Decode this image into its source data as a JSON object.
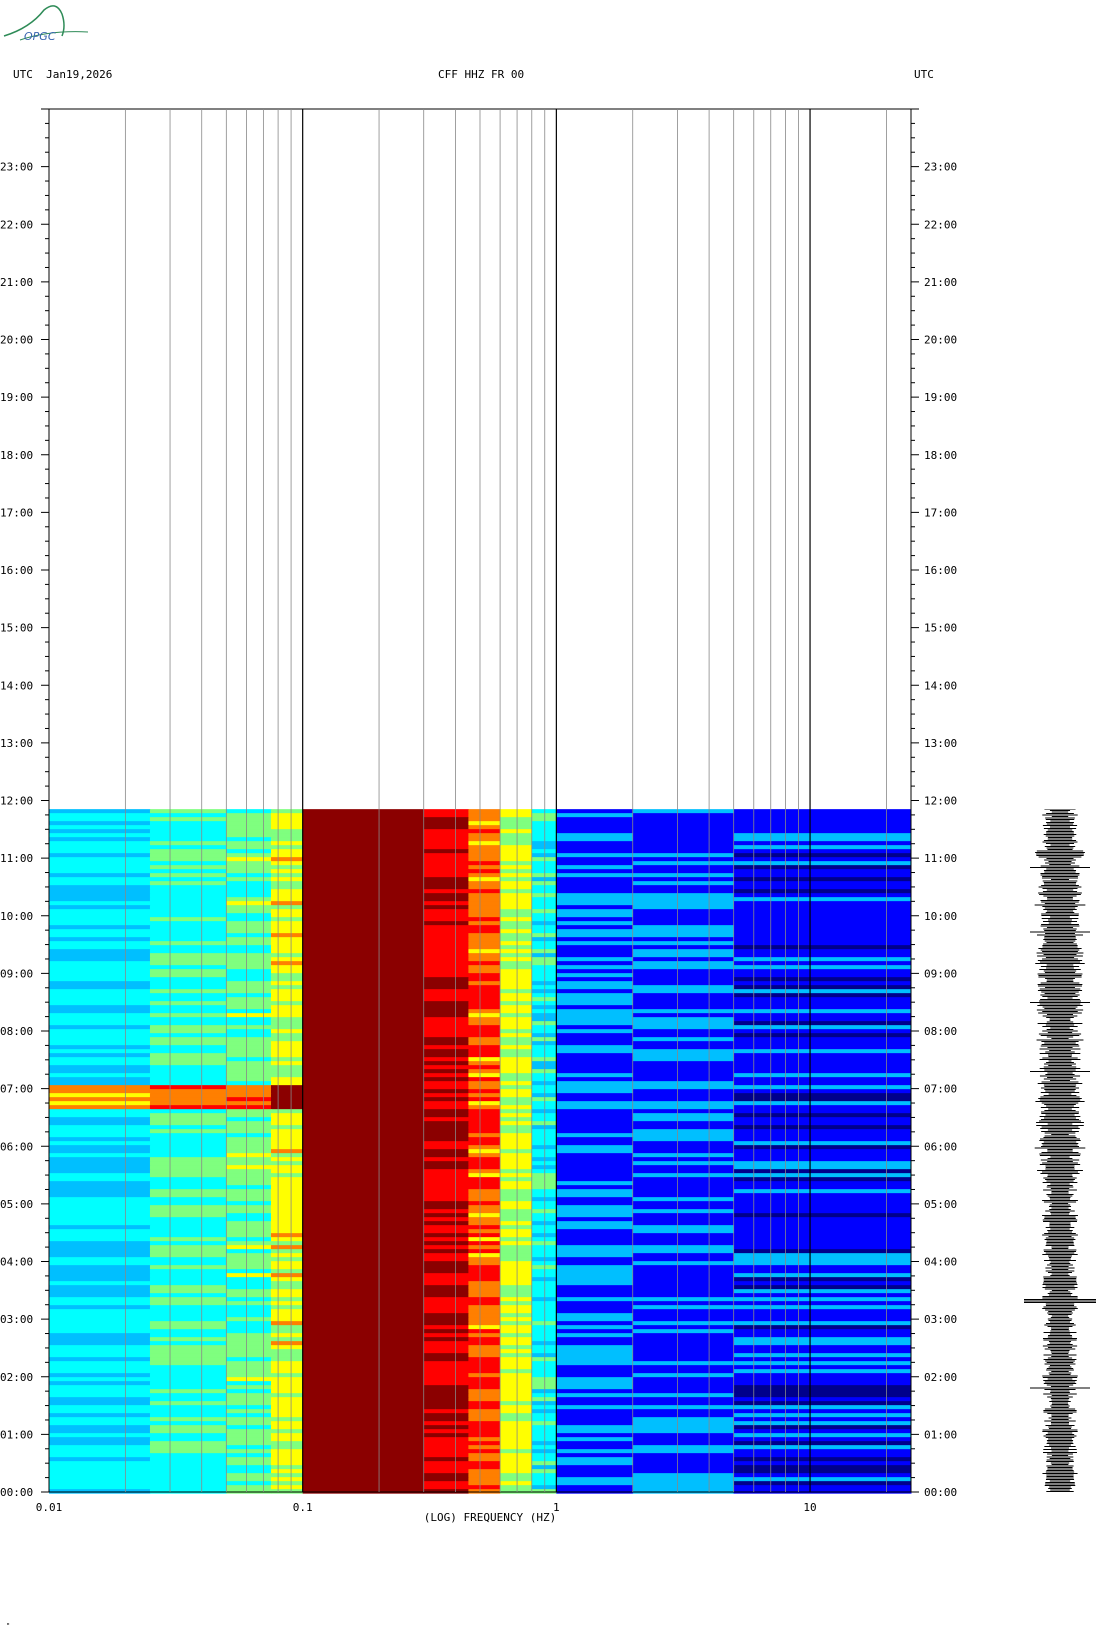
{
  "header": {
    "left": "UTC  Jan19,2026",
    "center": "CFF HHZ FR 00",
    "right": "UTC"
  },
  "logo": {
    "text": "OPGC"
  },
  "footnote": "\"",
  "chart_data": {
    "type": "heatmap",
    "title": "CFF HHZ FR 00",
    "date": "Jan19,2026",
    "xlabel": "(LOG) FREQUENCY (HZ)",
    "ylabel": "UTC",
    "x_scale": "log",
    "xlim": [
      0.01,
      25
    ],
    "x_major_ticks": [
      0.01,
      0.1,
      1,
      10
    ],
    "x_tick_labels": [
      "0.01",
      "0.1",
      "1",
      "10"
    ],
    "y_tick_labels": [
      "00:00",
      "01:00",
      "02:00",
      "03:00",
      "04:00",
      "05:00",
      "06:00",
      "07:00",
      "08:00",
      "09:00",
      "10:00",
      "11:00",
      "12:00",
      "13:00",
      "14:00",
      "15:00",
      "16:00",
      "17:00",
      "18:00",
      "19:00",
      "20:00",
      "21:00",
      "22:00",
      "23:00"
    ],
    "ylim_hours": [
      0,
      24
    ],
    "data_end_hour": 11.85,
    "colormap": [
      "#00008b",
      "#0000ff",
      "#00bfff",
      "#00ffff",
      "#7fff7f",
      "#ffff00",
      "#ff7f00",
      "#ff0000",
      "#8b0000"
    ],
    "bands": [
      {
        "from": 0.01,
        "to": 0.025,
        "level": 2.6
      },
      {
        "from": 0.025,
        "to": 0.05,
        "level": 3.4
      },
      {
        "from": 0.05,
        "to": 0.075,
        "level": 3.8
      },
      {
        "from": 0.075,
        "to": 0.1,
        "level": 4.8
      },
      {
        "from": 0.1,
        "to": 0.3,
        "level": 8.6
      },
      {
        "from": 0.3,
        "to": 0.45,
        "level": 7.4
      },
      {
        "from": 0.45,
        "to": 0.6,
        "level": 6.2
      },
      {
        "from": 0.6,
        "to": 0.8,
        "level": 4.6
      },
      {
        "from": 0.8,
        "to": 1.0,
        "level": 3.0
      },
      {
        "from": 1.0,
        "to": 2.0,
        "level": 1.4
      },
      {
        "from": 2.0,
        "to": 5.0,
        "level": 1.3
      },
      {
        "from": 5.0,
        "to": 25,
        "level": 1.0
      }
    ],
    "events": [
      {
        "name": "long-period event",
        "start_hour": 6.68,
        "end_hour": 7.1,
        "fmin": 0.01,
        "fmax": 0.1
      },
      {
        "name": "microseism enhancement",
        "start_hour": 5.5,
        "end_hour": 11.2,
        "fmin": 2.5,
        "fmax": 4.0
      },
      {
        "name": "local event",
        "start_hour": 3.28,
        "end_hour": 3.36,
        "fmin": 2.5,
        "fmax": 8.0
      }
    ]
  }
}
